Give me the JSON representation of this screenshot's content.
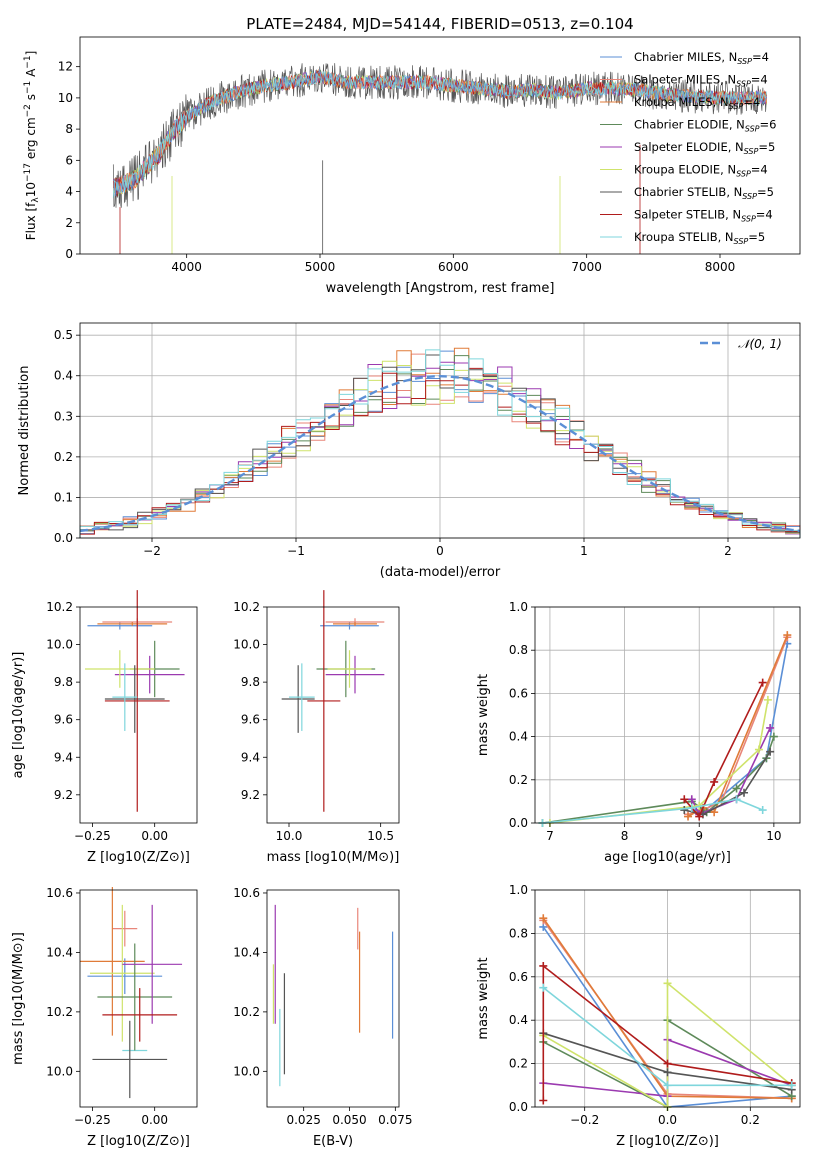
{
  "figure": {
    "title": "PLATE=2484, MJD=54144, FIBERID=0513, z=0.104"
  },
  "series_styles": [
    {
      "name": "Chabrier MILES",
      "label": "Chabrier MILES, N_SSP=4",
      "color": "#5b8fd6"
    },
    {
      "name": "Salpeter MILES",
      "label": "Salpeter MILES, N_SSP=4",
      "color": "#e8867a"
    },
    {
      "name": "Kroupa MILES",
      "label": "Kroupa MILES, N_SSP=4",
      "color": "#e07b39"
    },
    {
      "name": "Chabrier ELODIE",
      "label": "Chabrier ELODIE, N_SSP=6",
      "color": "#5e8a5a"
    },
    {
      "name": "Salpeter ELODIE",
      "label": "Salpeter ELODIE, N_SSP=5",
      "color": "#9b3ab0"
    },
    {
      "name": "Kroupa ELODIE",
      "label": "Kroupa ELODIE, N_SSP=4",
      "color": "#cfe36b"
    },
    {
      "name": "Chabrier STELIB",
      "label": "Chabrier STELIB, N_SSP=5",
      "color": "#555555"
    },
    {
      "name": "Salpeter STELIB",
      "label": "Salpeter STELIB, N_SSP=4",
      "color": "#b01c1c"
    },
    {
      "name": "Kroupa STELIB",
      "label": "Kroupa STELIB, N_SSP=5",
      "color": "#7fd6dc"
    }
  ],
  "chart_data": [
    {
      "id": "spectrum",
      "type": "line",
      "xlabel": "wavelength [Angstrom, rest frame]",
      "ylabel": "Flux [f_λ10^-17 erg cm^-2 s^-1 A^-1]",
      "xlim": [
        3200,
        8600
      ],
      "ylim": [
        0,
        13.9
      ],
      "xticks": [
        4000,
        5000,
        6000,
        7000,
        8000
      ],
      "yticks": [
        0,
        2,
        4,
        6,
        8,
        10,
        12
      ],
      "legend": "right",
      "continuum": {
        "x": [
          3450,
          3600,
          3800,
          3900,
          4000,
          4200,
          4400,
          4600,
          4800,
          5000,
          5200,
          5400,
          5600,
          5800,
          6000,
          6200,
          6400,
          6600,
          6800,
          7000,
          7200,
          7400,
          7600,
          7800,
          8000,
          8200,
          8350
        ],
        "y": [
          4.2,
          4.7,
          6.5,
          7.8,
          8.8,
          9.8,
          10.4,
          10.8,
          11.0,
          11.4,
          11.0,
          11.0,
          11.0,
          11.0,
          10.8,
          10.6,
          10.4,
          10.5,
          10.3,
          10.6,
          10.6,
          10.5,
          10.2,
          10.1,
          10.0,
          10.0,
          10.0
        ]
      }
    },
    {
      "id": "residual-histogram",
      "type": "bar",
      "xlabel": "(data-model)/error",
      "ylabel": "Normed distribution",
      "xlim": [
        -2.5,
        2.5
      ],
      "ylim": [
        0,
        0.53
      ],
      "xticks": [
        -2,
        -1,
        0,
        1,
        2
      ],
      "yticks": [
        0.0,
        0.1,
        0.2,
        0.3,
        0.4,
        0.5
      ],
      "grid": true,
      "legend": "top-right",
      "reference_label": "𝒩(0, 1)",
      "reference_color": "#5b8fd6",
      "bin_edges_range": [
        -2.5,
        2.5
      ],
      "bin_count": 50
    },
    {
      "id": "age-vs-Z",
      "type": "scatter",
      "xlabel": "Z [log10(Z/Z⊙)]",
      "ylabel": "age  [log10(age/yr)]",
      "xlim": [
        -0.3,
        0.17
      ],
      "ylim": [
        9.05,
        10.2
      ],
      "xticks": [
        -0.25,
        0.0
      ],
      "yticks": [
        9.2,
        9.4,
        9.6,
        9.8,
        10.0,
        10.2
      ],
      "points": [
        {
          "x": -0.14,
          "y": 10.1,
          "xerr": 0.13,
          "yerr": 0.02,
          "s": 0
        },
        {
          "x": -0.07,
          "y": 10.12,
          "xerr": 0.14,
          "yerr": 0.02,
          "s": 1
        },
        {
          "x": -0.09,
          "y": 10.11,
          "xerr": 0.14,
          "yerr": 0.01,
          "s": 2
        },
        {
          "x": 0.0,
          "y": 9.87,
          "xerr": 0.1,
          "yerr": 0.15,
          "s": 3
        },
        {
          "x": -0.02,
          "y": 9.84,
          "xerr": 0.14,
          "yerr": 0.1,
          "s": 4
        },
        {
          "x": -0.14,
          "y": 9.87,
          "xerr": 0.14,
          "yerr": 0.1,
          "s": 5
        },
        {
          "x": -0.08,
          "y": 9.71,
          "xerr": 0.12,
          "yerr": 0.18,
          "s": 6
        },
        {
          "x": -0.07,
          "y": 9.7,
          "xerr": 0.13,
          "yerr": 0.59,
          "s": 7
        },
        {
          "x": -0.12,
          "y": 9.72,
          "xerr": 0.05,
          "yerr": 0.18,
          "s": 8
        }
      ]
    },
    {
      "id": "age-vs-mass",
      "type": "scatter",
      "xlabel": "mass [log10(M/M⊙)]",
      "ylabel": "",
      "xlim": [
        9.88,
        10.6
      ],
      "ylim": [
        9.05,
        10.2
      ],
      "xticks": [
        10.0,
        10.5
      ],
      "yticks": [
        9.2,
        9.4,
        9.6,
        9.8,
        10.0,
        10.2
      ],
      "points": [
        {
          "x": 10.33,
          "y": 10.1,
          "xerr": 0.16,
          "yerr": 0.02,
          "s": 0
        },
        {
          "x": 10.36,
          "y": 10.12,
          "xerr": 0.16,
          "yerr": 0.02,
          "s": 1
        },
        {
          "x": 10.36,
          "y": 10.11,
          "xerr": 0.12,
          "yerr": 0.01,
          "s": 2
        },
        {
          "x": 10.31,
          "y": 9.87,
          "xerr": 0.16,
          "yerr": 0.15,
          "s": 3
        },
        {
          "x": 10.36,
          "y": 9.84,
          "xerr": 0.16,
          "yerr": 0.1,
          "s": 4
        },
        {
          "x": 10.33,
          "y": 9.87,
          "xerr": 0.12,
          "yerr": 0.1,
          "s": 5
        },
        {
          "x": 10.05,
          "y": 9.71,
          "xerr": 0.09,
          "yerr": 0.18,
          "s": 6
        },
        {
          "x": 10.19,
          "y": 9.7,
          "xerr": 0.09,
          "yerr": 0.59,
          "s": 7
        },
        {
          "x": 10.07,
          "y": 9.72,
          "xerr": 0.07,
          "yerr": 0.18,
          "s": 8
        }
      ]
    },
    {
      "id": "weight-vs-age",
      "type": "line",
      "xlabel": "age  [log10(age/yr)]",
      "ylabel": "mass weight",
      "xlim": [
        6.8,
        10.35
      ],
      "ylim": [
        0,
        1.0
      ],
      "xticks": [
        7,
        8,
        9,
        10
      ],
      "yticks": [
        0.0,
        0.2,
        0.4,
        0.6,
        0.8,
        1.0
      ],
      "grid": true,
      "series": [
        {
          "s": 0,
          "x": [
            8.95,
            9.05,
            9.9,
            10.18
          ],
          "y": [
            0.06,
            0.05,
            0.3,
            0.83
          ]
        },
        {
          "s": 1,
          "x": [
            8.85,
            9.05,
            9.3,
            10.18
          ],
          "y": [
            0.04,
            0.06,
            0.1,
            0.86
          ]
        },
        {
          "s": 2,
          "x": [
            8.85,
            9.05,
            9.2,
            10.18
          ],
          "y": [
            0.03,
            0.07,
            0.05,
            0.87
          ]
        },
        {
          "s": 3,
          "x": [
            6.9,
            8.9,
            9.1,
            9.5,
            9.9,
            10.0
          ],
          "y": [
            0.0,
            0.1,
            0.05,
            0.16,
            0.3,
            0.4
          ]
        },
        {
          "s": 4,
          "x": [
            8.9,
            9.0,
            9.5,
            9.95
          ],
          "y": [
            0.11,
            0.04,
            0.11,
            0.44
          ]
        },
        {
          "s": 5,
          "x": [
            7.0,
            9.0,
            9.8,
            9.92
          ],
          "y": [
            0.0,
            0.08,
            0.34,
            0.57
          ]
        },
        {
          "s": 6,
          "x": [
            8.8,
            9.05,
            9.6,
            9.95
          ],
          "y": [
            0.06,
            0.04,
            0.14,
            0.33
          ]
        },
        {
          "s": 7,
          "x": [
            8.8,
            9.0,
            9.2,
            9.85
          ],
          "y": [
            0.11,
            0.03,
            0.19,
            0.65
          ]
        },
        {
          "s": 8,
          "x": [
            6.9,
            8.9,
            9.5,
            9.85
          ],
          "y": [
            0.0,
            0.07,
            0.11,
            0.06
          ]
        }
      ]
    },
    {
      "id": "mass-vs-Z",
      "type": "scatter",
      "xlabel": "Z [log10(Z/Z⊙)]",
      "ylabel": "mass [log10(M/M⊙)]",
      "xlim": [
        -0.3,
        0.17
      ],
      "ylim": [
        9.88,
        10.61
      ],
      "xticks": [
        -0.25,
        0.0
      ],
      "yticks": [
        10.0,
        10.2,
        10.4,
        10.6
      ],
      "points": [
        {
          "x": -0.08,
          "y": 10.07,
          "xerr": 0.05,
          "yerr": 0.0,
          "s": 8
        },
        {
          "x": -0.12,
          "y": 10.48,
          "xerr": 0.05,
          "yerr": 0.06,
          "s": 1
        },
        {
          "x": -0.12,
          "y": 10.32,
          "xerr": 0.15,
          "yerr": 0.06,
          "s": 0
        },
        {
          "x": -0.17,
          "y": 10.37,
          "xerr": 0.13,
          "yerr": 0.25,
          "s": 2
        },
        {
          "x": -0.13,
          "y": 10.33,
          "xerr": 0.13,
          "yerr": 0.23,
          "s": 5
        },
        {
          "x": -0.08,
          "y": 10.25,
          "xerr": 0.15,
          "yerr": 0.18,
          "s": 3
        },
        {
          "x": -0.01,
          "y": 10.36,
          "xerr": 0.12,
          "yerr": 0.2,
          "s": 4
        },
        {
          "x": -0.06,
          "y": 10.19,
          "xerr": 0.15,
          "yerr": 0.09,
          "s": 7
        },
        {
          "x": -0.1,
          "y": 10.04,
          "xerr": 0.15,
          "yerr": 0.13,
          "s": 6
        }
      ]
    },
    {
      "id": "mass-vs-EBV",
      "type": "scatter",
      "xlabel": "E(B-V)",
      "ylabel": "",
      "xlim": [
        0.005,
        0.077
      ],
      "ylim": [
        9.88,
        10.61
      ],
      "xticks": [
        0.025,
        0.05,
        0.075
      ],
      "yticks": [
        10.0,
        10.2,
        10.4,
        10.6
      ],
      "points": [
        {
          "x": 0.0095,
          "y": 10.36,
          "xerr": 0,
          "yerr": 0.2,
          "s": 4
        },
        {
          "x": 0.0085,
          "y": 10.26,
          "xerr": 0,
          "yerr": 0.1,
          "s": 5
        },
        {
          "x": 0.012,
          "y": 10.08,
          "xerr": 0,
          "yerr": 0.13,
          "s": 8
        },
        {
          "x": 0.0145,
          "y": 10.16,
          "xerr": 0,
          "yerr": 0.17,
          "s": 6
        },
        {
          "x": 0.0545,
          "y": 10.48,
          "xerr": 0,
          "yerr": 0.07,
          "s": 1
        },
        {
          "x": 0.0555,
          "y": 10.3,
          "xerr": 0,
          "yerr": 0.17,
          "s": 2
        },
        {
          "x": 0.0735,
          "y": 10.29,
          "xerr": 0,
          "yerr": 0.18,
          "s": 0
        }
      ]
    },
    {
      "id": "weight-vs-Z",
      "type": "line",
      "xlabel": "Z [log10(Z/Z⊙)]",
      "ylabel": "mass weight",
      "xlim": [
        -0.32,
        0.32
      ],
      "ylim": [
        0,
        1.0
      ],
      "xticks": [
        -0.2,
        0.0,
        0.2
      ],
      "yticks": [
        0.0,
        0.2,
        0.4,
        0.6,
        0.8,
        1.0
      ],
      "grid": true,
      "series": [
        {
          "s": 0,
          "x": [
            -0.3,
            0.0,
            0.3
          ],
          "y": [
            0.83,
            0.0,
            0.05
          ]
        },
        {
          "s": 1,
          "x": [
            -0.3,
            0.0,
            0.3
          ],
          "y": [
            0.86,
            0.06,
            0.04
          ]
        },
        {
          "s": 2,
          "x": [
            -0.3,
            0.0,
            0.3
          ],
          "y": [
            0.87,
            0.05,
            0.04
          ]
        },
        {
          "s": 3,
          "x": [
            -0.3,
            0.0,
            0.0,
            0.3
          ],
          "y": [
            0.3,
            0.0,
            0.4,
            0.05
          ]
        },
        {
          "s": 4,
          "x": [
            -0.3,
            0.0,
            0.0,
            0.3
          ],
          "y": [
            0.11,
            0.05,
            0.31,
            0.1
          ]
        },
        {
          "s": 5,
          "x": [
            -0.3,
            0.0,
            0.0,
            0.3
          ],
          "y": [
            0.33,
            0.0,
            0.57,
            0.1
          ]
        },
        {
          "s": 6,
          "x": [
            -0.3,
            0.0,
            0.3
          ],
          "y": [
            0.34,
            0.16,
            0.08
          ]
        },
        {
          "s": 7,
          "x": [
            -0.3,
            -0.3,
            0.0,
            0.3
          ],
          "y": [
            0.03,
            0.65,
            0.2,
            0.11
          ]
        },
        {
          "s": 8,
          "x": [
            -0.3,
            0.0,
            0.3
          ],
          "y": [
            0.55,
            0.1,
            0.1
          ]
        }
      ]
    }
  ]
}
